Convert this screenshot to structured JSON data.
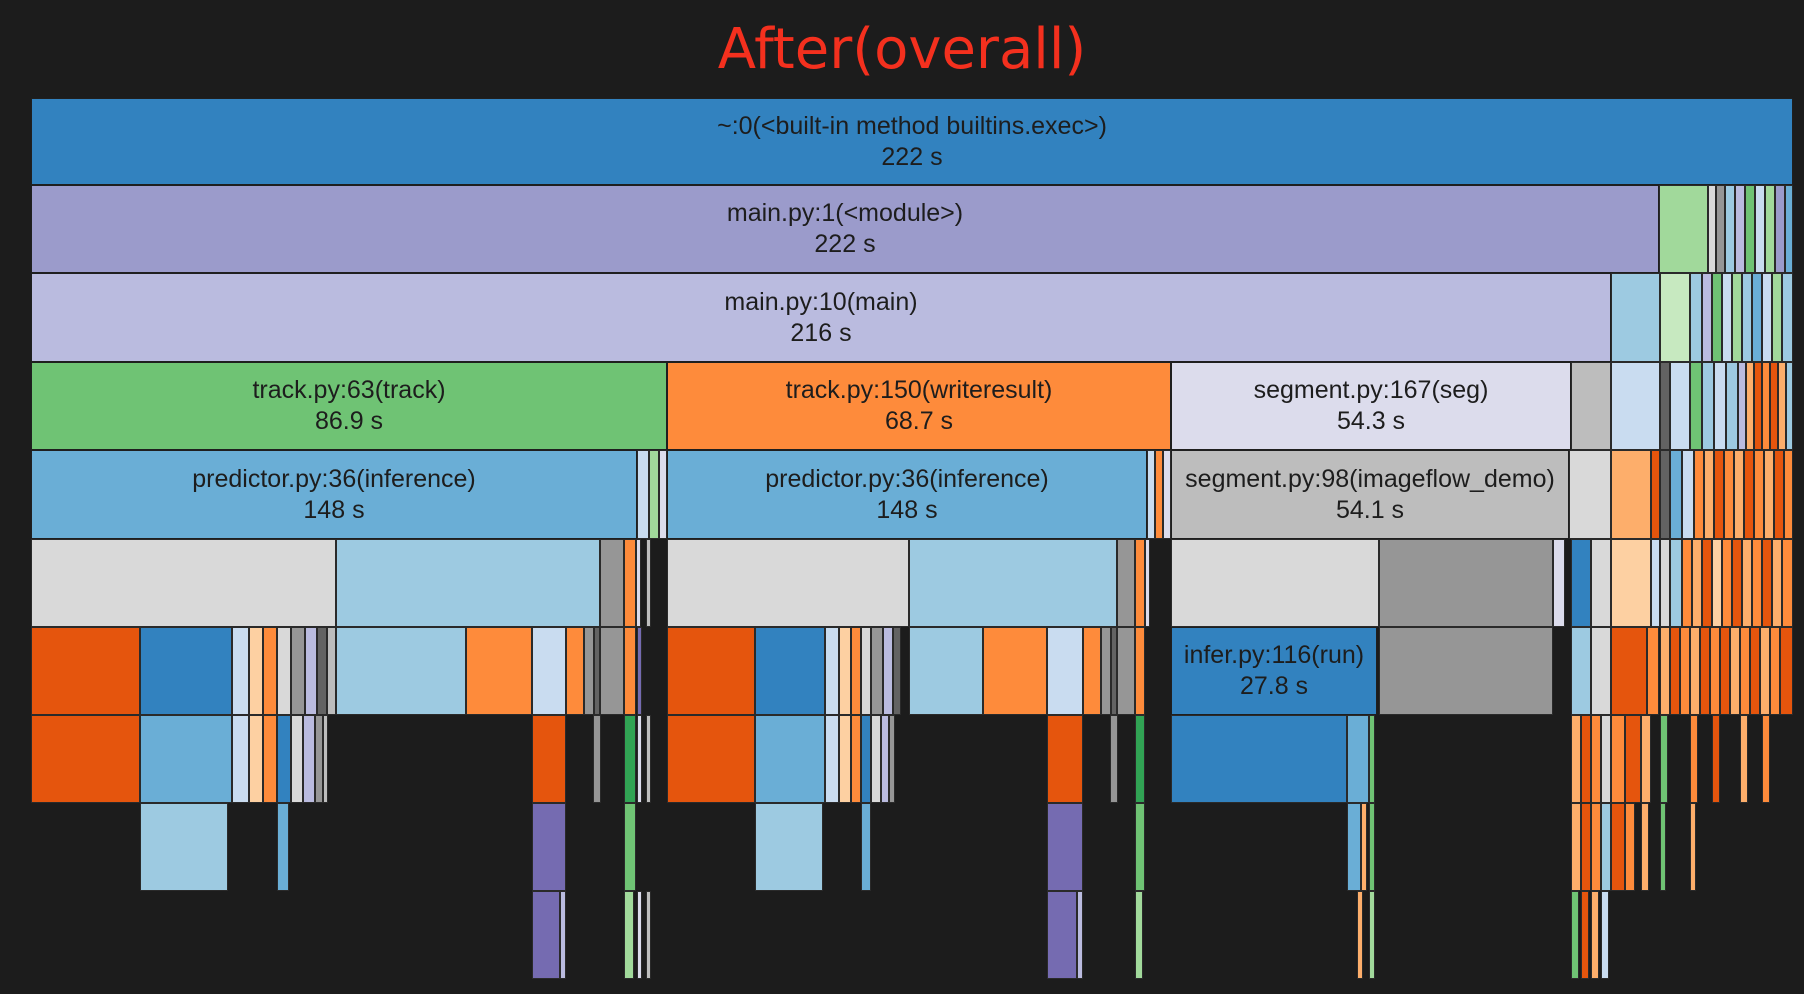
{
  "header": {
    "title": "After(overall)"
  },
  "colors": {
    "background": "#1c1c1c",
    "title": "#f4301e",
    "blue": "#3282bf",
    "lavender": "#9b9bcb",
    "light_lavender": "#babbdf",
    "green": "#6fc374",
    "orange": "#fe8b3b",
    "pale_lavender": "#dcdcec",
    "mid_blue": "#6aaed6",
    "gray": "#bdbdbd",
    "light_gray": "#d9d9d9",
    "dark_gray": "#969696",
    "light_blue": "#9dcae1",
    "pale_blue": "#c9dcf0",
    "dark_orange": "#e5550d",
    "purple": "#756bb1"
  },
  "frames": {
    "root": {
      "name": "~:0(<built-in method builtins.exec>)",
      "time": "222 s"
    },
    "module": {
      "name": "main.py:1(<module>)",
      "time": "222 s"
    },
    "main": {
      "name": "main.py:10(main)",
      "time": "216 s"
    },
    "track": {
      "name": "track.py:63(track)",
      "time": "86.9 s"
    },
    "writeresult": {
      "name": "track.py:150(writeresult)",
      "time": "68.7 s"
    },
    "seg": {
      "name": "segment.py:167(seg)",
      "time": "54.3 s"
    },
    "inference_left": {
      "name": "predictor.py:36(inference)",
      "time": "148 s"
    },
    "inference_mid": {
      "name": "predictor.py:36(inference)",
      "time": "148 s"
    },
    "imageflow": {
      "name": "segment.py:98(imageflow_demo)",
      "time": "54.1 s"
    },
    "infer_run": {
      "name": "infer.py:116(run)",
      "time": "27.8 s"
    }
  }
}
